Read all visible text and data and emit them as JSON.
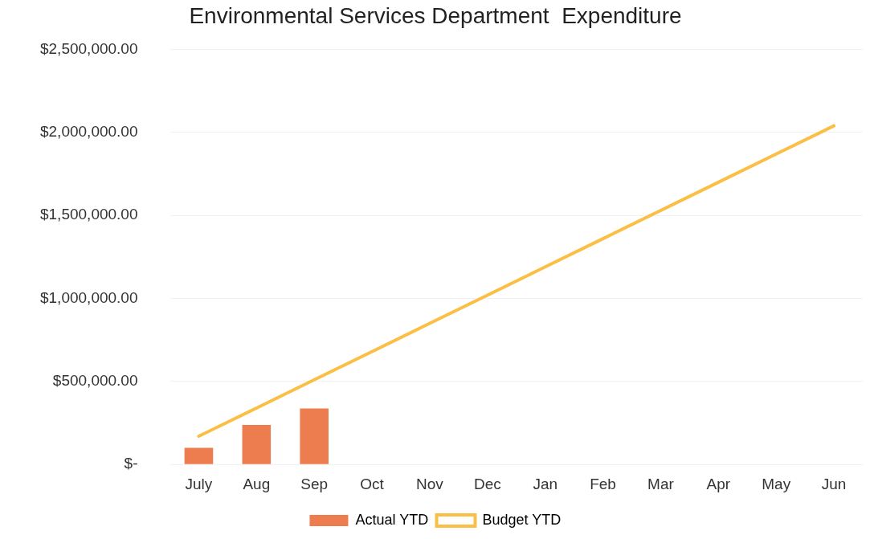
{
  "chart_data": {
    "type": "bar",
    "title": "Environmental Services Department  Expenditure",
    "categories": [
      "July",
      "Aug",
      "Sep",
      "Oct",
      "Nov",
      "Dec",
      "Jan",
      "Feb",
      "Mar",
      "Apr",
      "May",
      "Jun"
    ],
    "series": [
      {
        "name": "Actual YTD",
        "color": "#ed7d4f",
        "values": [
          100000,
          238000,
          337000,
          null,
          null,
          null,
          null,
          null,
          null,
          null,
          null,
          null
        ]
      },
      {
        "name": "Budget YTD",
        "type": "line",
        "color": "#fbbf45",
        "values": [
          170000,
          340000,
          510000,
          680000,
          850000,
          1020000,
          1190000,
          1360000,
          1530000,
          1700000,
          1870000,
          2040000
        ]
      }
    ],
    "ylim": [
      0,
      2500000
    ],
    "yticks": [
      {
        "value": 0,
        "label": "$-"
      },
      {
        "value": 500000,
        "label": "$500,000.00"
      },
      {
        "value": 1000000,
        "label": "$1,000,000.00"
      },
      {
        "value": 1500000,
        "label": "$1,500,000.00"
      },
      {
        "value": 2000000,
        "label": "$2,000,000.00"
      },
      {
        "value": 2500000,
        "label": "$2,500,000.00"
      }
    ],
    "grid": "y",
    "legend": "bottom",
    "marker": "none"
  }
}
